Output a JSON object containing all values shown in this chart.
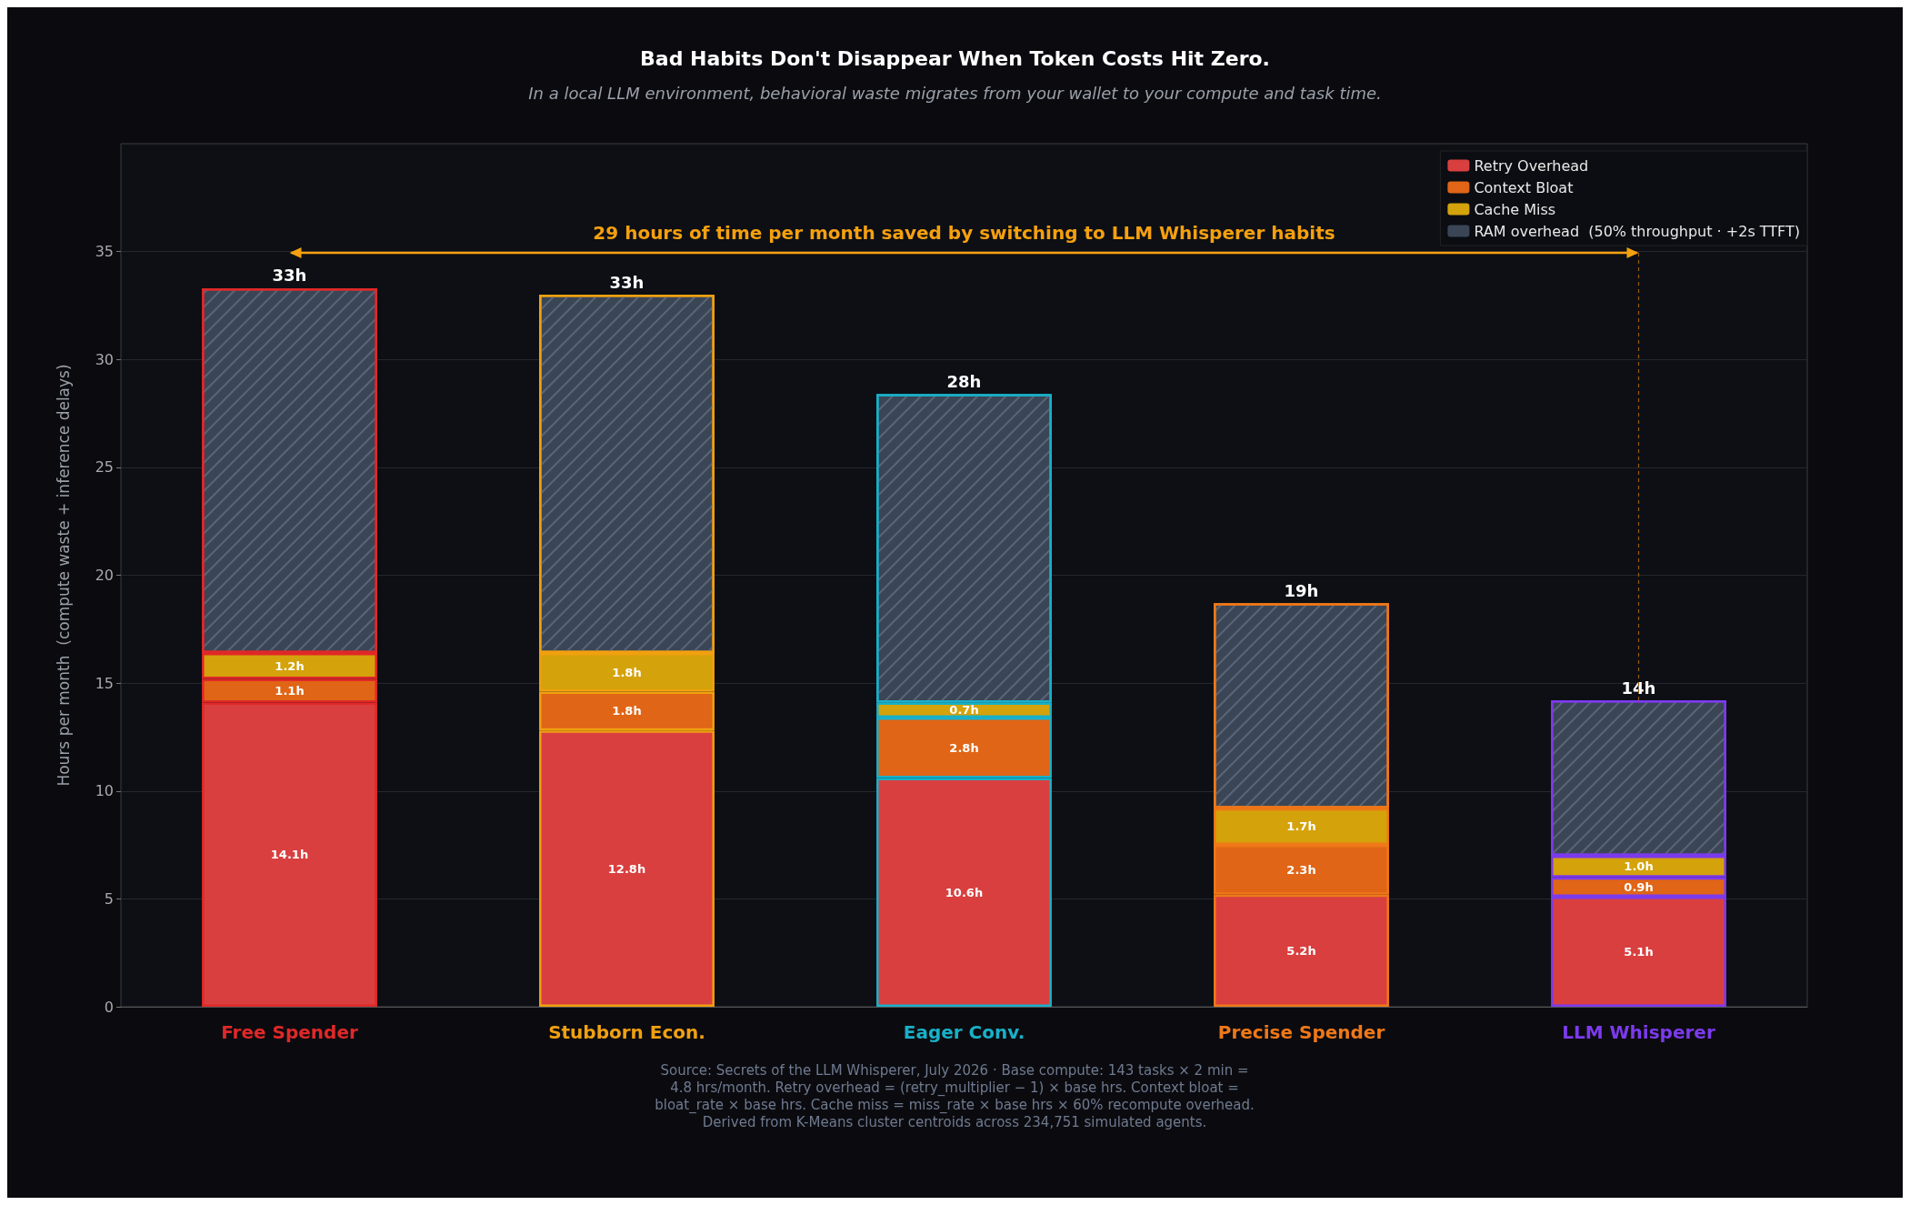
{
  "chart_data": {
    "type": "bar",
    "stacked": true,
    "title": "Bad Habits Don't Disappear When Token Costs Hit Zero.",
    "subtitle": "In a local LLM environment, behavioral waste migrates from your wallet to your compute and task time.",
    "ylabel": "Hours per month  (compute waste + inference delays)",
    "categories": [
      "Free Spender",
      "Stubborn Econ.",
      "Eager Conv.",
      "Precise Spender",
      "LLM Whisperer"
    ],
    "colors": [
      "#e02828",
      "#f0a010",
      "#18b0c8",
      "#f07818",
      "#7c3aed"
    ],
    "series": [
      {
        "name": "Retry Overhead",
        "color": "#d93f3f",
        "values": [
          14.1,
          12.8,
          10.6,
          5.2,
          5.1
        ],
        "value_labels": [
          "14.1h",
          "12.8h",
          "10.6h",
          "5.2h",
          "5.1h"
        ]
      },
      {
        "name": "Context Bloat",
        "color": "#e06516",
        "values": [
          1.1,
          1.8,
          2.8,
          2.3,
          0.9
        ],
        "value_labels": [
          "1.1h",
          "1.8h",
          "2.8h",
          "2.3h",
          "0.9h"
        ]
      },
      {
        "name": "Cache Miss",
        "color": "#d4a20a",
        "values": [
          1.2,
          1.8,
          0.7,
          1.7,
          1.0
        ],
        "value_labels": [
          "1.2h",
          "1.8h",
          "0.7h",
          "1.7h",
          "1.0h"
        ]
      },
      {
        "name": "RAM overhead  (50% throughput · +2s TTFT)",
        "color": "#3a4556",
        "values": [
          16.9,
          16.6,
          14.3,
          9.5,
          7.2
        ]
      }
    ],
    "totals": [
      "33h",
      "33h",
      "28h",
      "19h",
      "14h"
    ],
    "ylim": [
      0,
      40
    ],
    "yticks": [
      0,
      5,
      10,
      15,
      20,
      25,
      30,
      35
    ],
    "grid": "y",
    "legend": "top right",
    "annotations": [
      "29 hours of time per month saved by switching to LLM Whisperer habits",
      "Source: Secrets of the LLM Whisperer, July 2026  ·  Base compute: 143 tasks × 2 min = 4.8 hrs/month.  Retry overhead = (retry_multiplier − 1) × base hrs.  Context bloat = bloat_rate × base hrs.  Cache miss = miss_rate × base hrs × 60% recompute overhead.  Derived from K-Means cluster centroids across 234,751 simulated agents."
    ]
  }
}
